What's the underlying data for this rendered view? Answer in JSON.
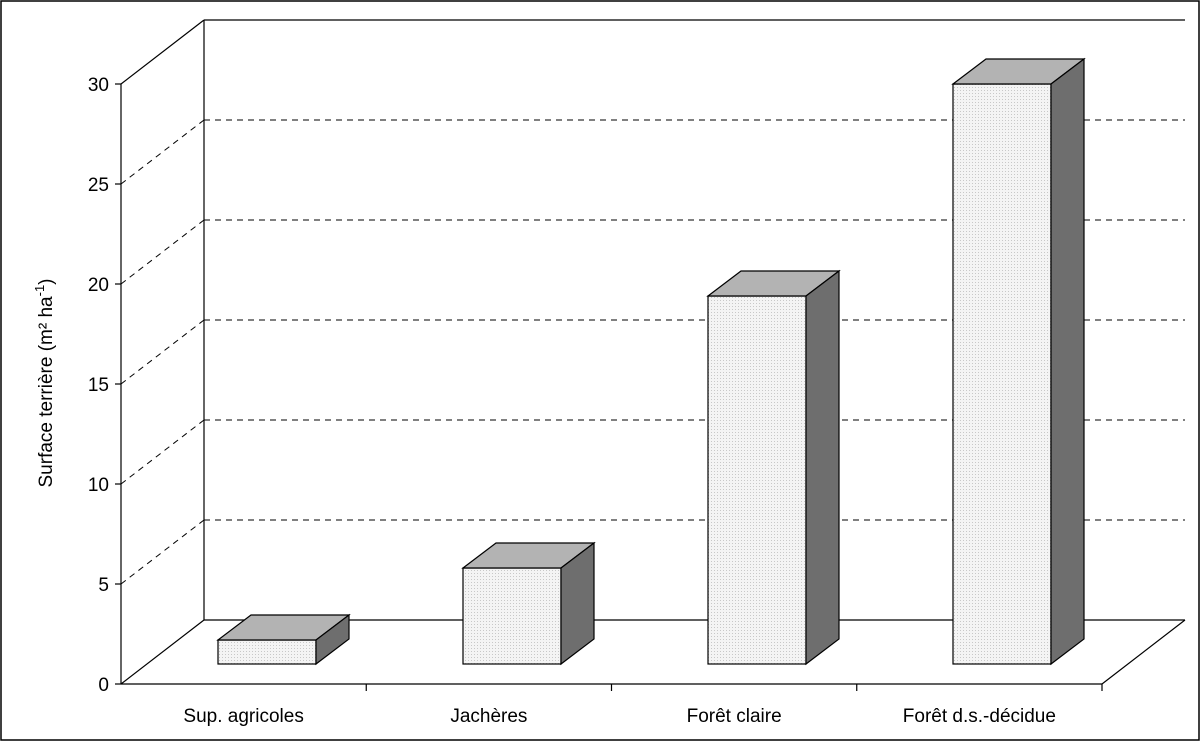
{
  "chart_data": {
    "type": "bar",
    "categories": [
      "Sup. agricoles",
      "Jachères",
      "Forêt claire",
      "Forêt d.s.-décidue"
    ],
    "values": [
      1.2,
      4.8,
      18.4,
      29.0
    ],
    "title": "",
    "xlabel": "",
    "ylabel_main": "Surface terrière (m² ha",
    "ylabel_sup": "-1",
    "ylabel_end": ")",
    "ylim": [
      0,
      30
    ],
    "yticks": [
      0,
      5,
      10,
      15,
      20,
      25,
      30
    ],
    "ytick_labels": [
      "0",
      "5",
      "10",
      "15",
      "20",
      "25",
      "30"
    ],
    "grid": true,
    "grid_style": "dashed",
    "style": "3d",
    "colors": {
      "front": "#f2f2f2",
      "top": "#b3b3b3",
      "side": "#6e6e6e",
      "stroke": "#000000"
    }
  }
}
